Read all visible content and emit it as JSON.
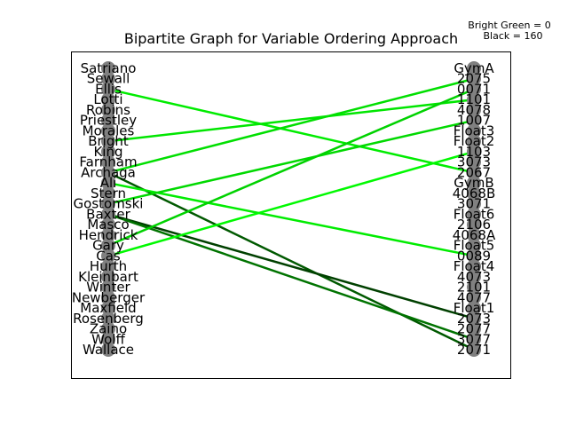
{
  "chart_data": {
    "type": "bipartite",
    "title": "Bipartite Graph for Variable Ordering Approach",
    "legend": {
      "bright_green": "Bright Green = 0",
      "black": "Black = 160"
    },
    "colors": {
      "node": "#808080",
      "edge_gradient": [
        "#00ff00",
        "#003300"
      ],
      "frame": "#000000"
    },
    "left_nodes": [
      "Satriano",
      "Sewall",
      "Ellis",
      "Lotti",
      "Robins",
      "Priestley",
      "Morales",
      "Bright",
      "King",
      "Farnham",
      "Archaga",
      "Ali",
      "Stern",
      "Gostomski",
      "Baxter",
      "Masco",
      "Hendrick",
      "Gary",
      "Cas",
      "Hurth",
      "Kleinbart",
      "Winter",
      "Newberger",
      "Maxfield",
      "Rosenberg",
      "Zaino",
      "Wolff",
      "Wallace"
    ],
    "right_nodes": [
      "GymA",
      "2075",
      "0071",
      "1101",
      "4078",
      "1007",
      "Float3",
      "Float2",
      "1103",
      "3073",
      "2067",
      "GymB",
      "4068B",
      "3071",
      "Float6",
      "2106",
      "4068A",
      "Float5",
      "0089",
      "Float4",
      "4073",
      "2101",
      "4077",
      "Float1",
      "2073",
      "2077",
      "3077",
      "2071"
    ],
    "edges": [
      {
        "source": "Ellis",
        "target": "2067",
        "weight": 15
      },
      {
        "source": "Bright",
        "target": "1101",
        "weight": 20
      },
      {
        "source": "Archaga",
        "target": "2075",
        "weight": 25
      },
      {
        "source": "Archaga",
        "target": "2071",
        "weight": 130
      },
      {
        "source": "Ali",
        "target": "0089",
        "weight": 15
      },
      {
        "source": "Gostomski",
        "target": "1007",
        "weight": 30
      },
      {
        "source": "Baxter",
        "target": "2073",
        "weight": 150
      },
      {
        "source": "Baxter",
        "target": "3077",
        "weight": 110
      },
      {
        "source": "Gary",
        "target": "0071",
        "weight": 35
      },
      {
        "source": "Cas",
        "target": "1103",
        "weight": 5
      }
    ]
  }
}
